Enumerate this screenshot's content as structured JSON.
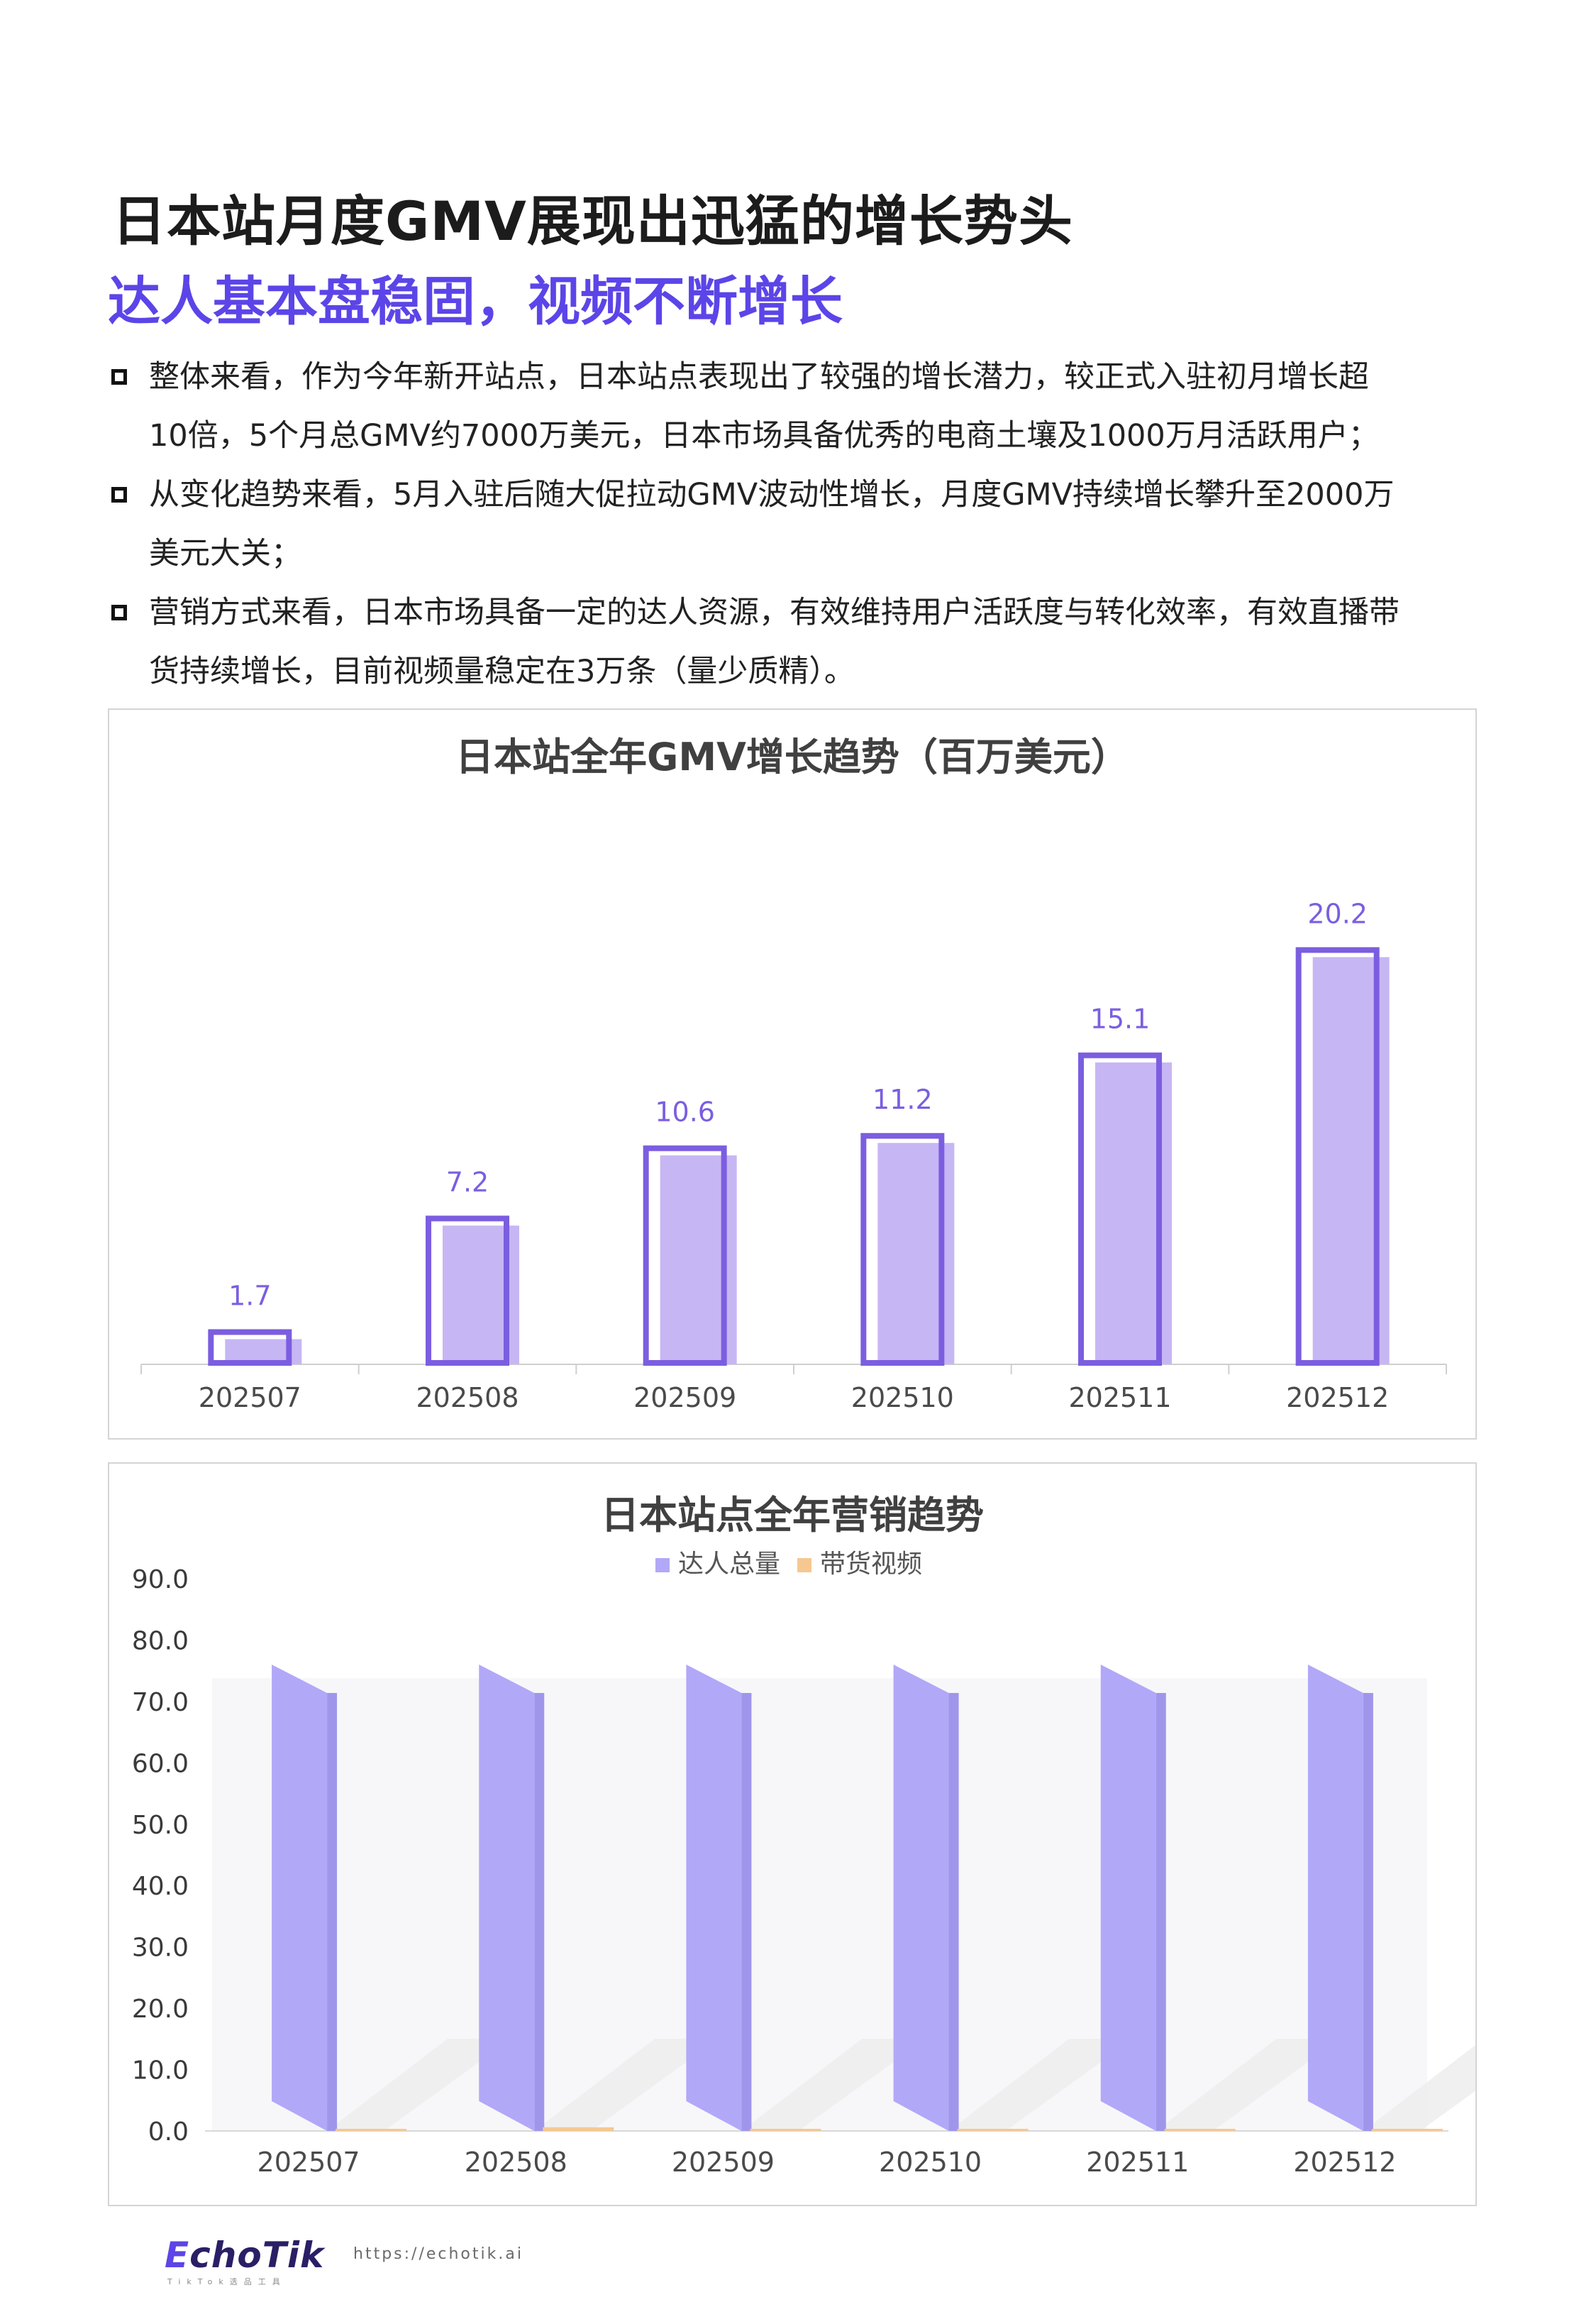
{
  "title": "日本站月度GMV展现出迅猛的增长势头",
  "subtitle": "达人基本盘稳固，视频不断增长",
  "bullets": [
    [
      "整体来看，作为今年新开站点，日本站点表现出了较强的增长潜力，较正式入驻初月增长超",
      "10倍，5个月总GMV约7000万美元，日本市场具备优秀的电商土壤及1000万月活跃用户；"
    ],
    [
      "从变化趋势来看，5月入驻后随大促拉动GMV波动性增长，月度GMV持续增长攀升至2000万",
      "美元大关；"
    ],
    [
      "营销方式来看，日本市场具备一定的达人资源，有效维持用户活跃度与转化效率，有效直播带",
      "货持续增长，目前视频量稳定在3万条（量少质精）。"
    ]
  ],
  "chart_data": [
    {
      "type": "bar",
      "title": "日本站全年GMV增长趋势（百万美元）",
      "categories": [
        "202507",
        "202508",
        "202509",
        "202510",
        "202511",
        "202512"
      ],
      "values": [
        1.7,
        7.2,
        10.6,
        11.2,
        15.1,
        20.2
      ],
      "data_labels": [
        "1.7",
        "7.2",
        "10.6",
        "11.2",
        "15.1",
        "20.2"
      ],
      "ylim": [
        0,
        22
      ],
      "grid": false,
      "color": "#7b5ee0",
      "fill": "#c7b6f4"
    },
    {
      "type": "bar",
      "title": "日本站点全年营销趋势",
      "categories": [
        "202507",
        "202508",
        "202509",
        "202510",
        "202511",
        "202512"
      ],
      "series": [
        {
          "name": "达人总量",
          "values": [
            76,
            76,
            76,
            76,
            76,
            76
          ],
          "color": "#b1a8f8"
        },
        {
          "name": "带货视频",
          "values": [
            0.2,
            0.6,
            0.3,
            0.2,
            0.1,
            0.0
          ],
          "color": "#f6c890"
        }
      ],
      "yticks": [
        "0.0",
        "10.0",
        "20.0",
        "30.0",
        "40.0",
        "50.0",
        "60.0",
        "70.0",
        "80.0",
        "90.0"
      ],
      "ylim": [
        0,
        90
      ],
      "legend": "top",
      "grid": false
    }
  ],
  "footer": {
    "logo_e": "E",
    "logo_rest": "choTik",
    "url": "https://echotik.ai",
    "tagline": "TikTok选品工具"
  }
}
